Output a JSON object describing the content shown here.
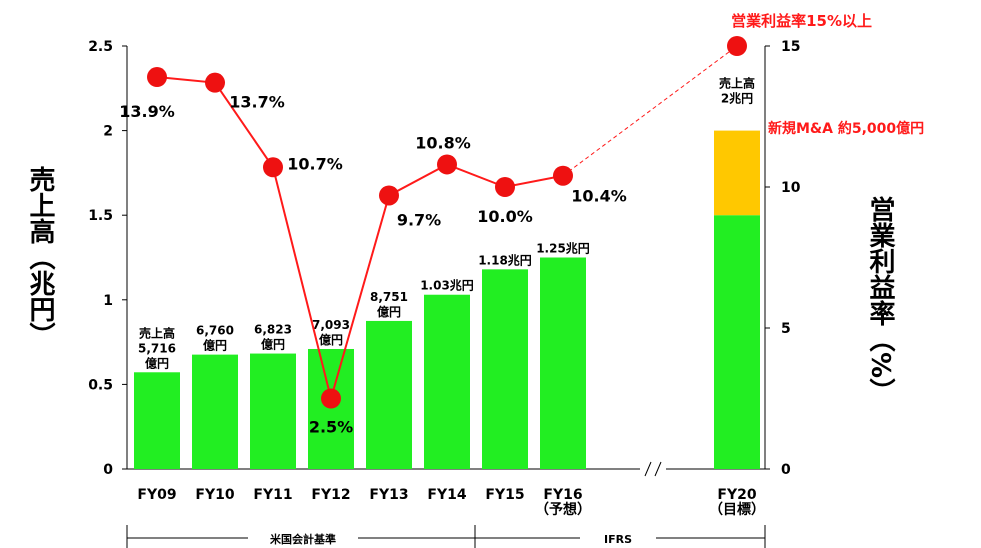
{
  "chart_data": {
    "type": "bar_line",
    "categories": [
      "FY09",
      "FY10",
      "FY11",
      "FY12",
      "FY13",
      "FY14",
      "FY15",
      "FY16\n（予想）",
      null,
      null,
      "FY20\n（目標）"
    ],
    "series": [
      {
        "color": "#22ee22",
        "values": [
          0.5716,
          0.676,
          0.6823,
          0.7093,
          0.8751,
          1.03,
          1.18,
          1.25,
          null,
          null,
          1.5
        ],
        "value_labels": [
          "売上高\n5,716\n億円",
          "6,760\n億円",
          "6,823\n億円",
          "7,093\n億円",
          "8,751\n億円",
          "1.03兆円",
          "1.18兆円",
          "1.25兆円",
          null,
          null,
          null
        ]
      },
      {
        "name": "新規M&A 約5,000億円",
        "color": "#ffc800",
        "values": [
          null,
          null,
          null,
          null,
          null,
          null,
          null,
          null,
          null,
          null,
          0.5
        ],
        "stacked": true
      },
      {
        "type": "line",
        "axis": "y2",
        "color": "#ff1a1a",
        "values": [
          13.9,
          13.7,
          10.7,
          2.5,
          9.7,
          10.8,
          10.0,
          10.4,
          null,
          null,
          15
        ],
        "value_labels": [
          "13.9%",
          "13.7%",
          "10.7%",
          "2.5%",
          "9.7%",
          "10.8%",
          "10.0%",
          "10.4%",
          null,
          null,
          null
        ]
      }
    ],
    "annotations": [
      {
        "text": "売上高\n2兆円"
      },
      {
        "text": "営業利益率15%以上"
      }
    ],
    "ylabel": "売上高（兆円）",
    "y2label": "営業利益率（%）",
    "ylim": [
      0,
      2.5
    ],
    "yticks": [
      0,
      0.5,
      1,
      1.5,
      2,
      2.5
    ],
    "y2lim": [
      0,
      15
    ],
    "y2ticks": [
      0,
      5,
      10,
      15
    ],
    "grid": false,
    "periods": [
      {
        "label": "米国会計基準"
      },
      {
        "label": "IFRS"
      }
    ]
  }
}
